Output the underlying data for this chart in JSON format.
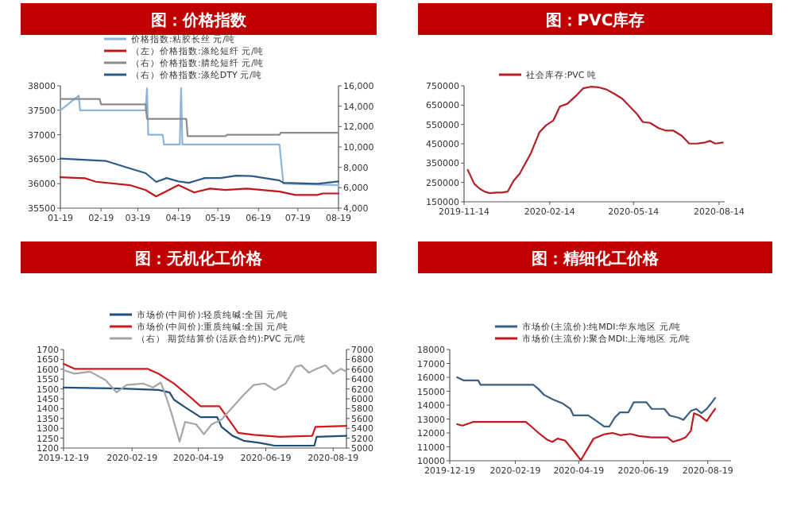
{
  "chart_data": [
    {
      "type": "line",
      "title": "图：价格指数",
      "legend": "top",
      "xlim": [
        "2019-01-19",
        "2019-08-19"
      ],
      "xticks": [
        {
          "value": "2019-01-19",
          "label": "01-19"
        },
        {
          "value": "2019-02-19",
          "label": "02-19"
        },
        {
          "value": "2019-03-19",
          "label": "03-19"
        },
        {
          "value": "2019-04-19",
          "label": "04-19"
        },
        {
          "value": "2019-05-19",
          "label": "05-19"
        },
        {
          "value": "2019-06-19",
          "label": "06-19"
        },
        {
          "value": "2019-07-19",
          "label": "07-19"
        },
        {
          "value": "2019-08-19",
          "label": "08-19"
        }
      ],
      "ylim": [
        35500,
        38000
      ],
      "yticks": [
        35500,
        36000,
        36500,
        37000,
        37500,
        38000
      ],
      "y2lim": [
        4000,
        16000
      ],
      "y2ticks": [
        {
          "value": 4000,
          "label": "4,000"
        },
        {
          "value": 6000,
          "label": "6,000"
        },
        {
          "value": 8000,
          "label": "8,000"
        },
        {
          "value": 10000,
          "label": "10,000"
        },
        {
          "value": 12000,
          "label": "12,000"
        },
        {
          "value": 14000,
          "label": "14,000"
        },
        {
          "value": 16000,
          "label": "16,000"
        }
      ],
      "series": [
        {
          "name": "价格指数:粘胶长丝 元/吨",
          "color": "#8fb4d9",
          "x": [
            "2019-01-19",
            "2019-02-02",
            "2019-02-03",
            "2019-03-25",
            "2019-03-26",
            "2019-03-27",
            "2019-04-07",
            "2019-04-08",
            "2019-04-20",
            "2019-04-21",
            "2019-04-22",
            "2019-07-05",
            "2019-07-08",
            "2019-08-19"
          ],
          "values": [
            37500,
            37800,
            37500,
            37500,
            37950,
            37000,
            37000,
            36800,
            36800,
            37950,
            36800,
            36800,
            36000,
            35970
          ]
        },
        {
          "name": "（左）价格指数:涤纶短纤 元/吨",
          "color": "#c0171d",
          "x": [
            "2019-01-19",
            "2019-02-07",
            "2019-02-15",
            "2019-03-13",
            "2019-03-25",
            "2019-04-02",
            "2019-04-19",
            "2019-05-01",
            "2019-05-13",
            "2019-05-25",
            "2019-06-10",
            "2019-07-05",
            "2019-07-17",
            "2019-08-03",
            "2019-08-07",
            "2019-08-19"
          ],
          "values": [
            36130,
            36110,
            36040,
            35970,
            35870,
            35740,
            35970,
            35820,
            35900,
            35870,
            35900,
            35840,
            35770,
            35770,
            35800,
            35800
          ]
        },
        {
          "name": "（右）价格指数:腈纶短纤 元/吨",
          "color": "#8c8c8c",
          "axis": "y2",
          "x": [
            "2019-01-19",
            "2019-02-18",
            "2019-02-19",
            "2019-03-25",
            "2019-03-26",
            "2019-04-25",
            "2019-04-26",
            "2019-05-25",
            "2019-05-26",
            "2019-07-05",
            "2019-07-06",
            "2019-08-19"
          ],
          "values": [
            14700,
            14700,
            14180,
            14180,
            12760,
            12760,
            11060,
            11060,
            11200,
            11200,
            11400,
            11400
          ]
        },
        {
          "name": "（右）价格指数:涤纶DTY 元/吨",
          "color": "#2e5a88",
          "axis": "y2",
          "x": [
            "2019-01-19",
            "2019-02-23",
            "2019-03-13",
            "2019-03-25",
            "2019-04-02",
            "2019-04-10",
            "2019-04-19",
            "2019-04-27",
            "2019-05-09",
            "2019-05-21",
            "2019-06-02",
            "2019-06-14",
            "2019-07-05",
            "2019-07-08",
            "2019-08-03",
            "2019-08-19"
          ],
          "values": [
            8860,
            8620,
            7900,
            7430,
            6570,
            6950,
            6620,
            6480,
            6950,
            6950,
            7190,
            7150,
            6720,
            6480,
            6380,
            6620
          ]
        }
      ]
    },
    {
      "type": "line",
      "title": "图：PVC库存",
      "legend": "top",
      "xlim": [
        "2019-11-14",
        "2020-08-20"
      ],
      "xticks": [
        {
          "value": "2019-11-14",
          "label": "2019-11-14"
        },
        {
          "value": "2020-02-14",
          "label": "2020-02-14"
        },
        {
          "value": "2020-05-14",
          "label": "2020-05-14"
        },
        {
          "value": "2020-08-14",
          "label": "2020-08-14"
        }
      ],
      "ylim": [
        150000,
        750000
      ],
      "yticks": [
        150000,
        250000,
        350000,
        450000,
        550000,
        650000,
        750000
      ],
      "series": [
        {
          "name": "社会库存:PVC 吨",
          "color": "#b22028",
          "x": [
            "2019-11-18",
            "2019-11-25",
            "2019-12-01",
            "2019-12-06",
            "2019-12-11",
            "2019-12-20",
            "2019-12-25",
            "2019-12-31",
            "2020-01-06",
            "2020-01-13",
            "2020-01-25",
            "2020-02-03",
            "2020-02-10",
            "2020-02-18",
            "2020-02-25",
            "2020-03-04",
            "2020-03-13",
            "2020-03-21",
            "2020-03-29",
            "2020-04-07",
            "2020-04-15",
            "2020-04-23",
            "2020-05-02",
            "2020-05-10",
            "2020-05-18",
            "2020-05-24",
            "2020-06-01",
            "2020-06-10",
            "2020-06-18",
            "2020-06-26",
            "2020-07-05",
            "2020-07-13",
            "2020-07-21",
            "2020-07-30",
            "2020-08-04",
            "2020-08-10",
            "2020-08-18"
          ],
          "values": [
            315000,
            243000,
            217000,
            203000,
            195000,
            198000,
            198000,
            203000,
            257000,
            297000,
            403000,
            510000,
            545000,
            571000,
            643000,
            657000,
            697000,
            737000,
            745000,
            742000,
            731000,
            710000,
            683000,
            643000,
            603000,
            563000,
            558000,
            531000,
            518000,
            518000,
            491000,
            451000,
            451000,
            457000,
            465000,
            451000,
            457000
          ]
        }
      ]
    },
    {
      "type": "line",
      "title": "图：无机化工价格",
      "legend": "top",
      "xlim": [
        "2019-12-19",
        "2020-08-31"
      ],
      "xticks": [
        {
          "value": "2019-12-19",
          "label": "2019-12-19"
        },
        {
          "value": "2020-02-19",
          "label": "2020-02-19"
        },
        {
          "value": "2020-04-19",
          "label": "2020-04-19"
        },
        {
          "value": "2020-06-19",
          "label": "2020-06-19"
        },
        {
          "value": "2020-08-19",
          "label": "2020-08-19"
        }
      ],
      "ylim": [
        1200,
        1700
      ],
      "yticks": [
        1200,
        1250,
        1300,
        1350,
        1400,
        1450,
        1500,
        1550,
        1600,
        1650,
        1700
      ],
      "y2lim": [
        5000,
        7000
      ],
      "y2ticks": [
        5000,
        5200,
        5400,
        5600,
        5800,
        6000,
        6200,
        6400,
        6600,
        6800,
        7000
      ],
      "series": [
        {
          "name": "市场价(中间价):轻质纯碱:全国 元/吨",
          "color": "#1f4e79",
          "x": [
            "2019-12-19",
            "2020-02-10",
            "2020-03-14",
            "2020-03-24",
            "2020-03-28",
            "2020-04-07",
            "2020-04-21",
            "2020-05-06",
            "2020-05-10",
            "2020-05-20",
            "2020-05-30",
            "2020-06-13",
            "2020-06-27",
            "2020-08-02",
            "2020-08-04",
            "2020-08-31"
          ],
          "values": [
            1507,
            1502,
            1495,
            1482,
            1445,
            1407,
            1357,
            1357,
            1307,
            1262,
            1237,
            1227,
            1212,
            1212,
            1257,
            1262
          ]
        },
        {
          "name": "市场价(中间价):重质纯碱:全国 元/吨",
          "color": "#d0191f",
          "x": [
            "2019-12-19",
            "2019-12-29",
            "2020-03-04",
            "2020-03-14",
            "2020-03-28",
            "2020-04-12",
            "2020-04-21",
            "2020-05-08",
            "2020-05-15",
            "2020-05-25",
            "2020-06-08",
            "2020-07-02",
            "2020-07-31",
            "2020-08-03",
            "2020-08-31"
          ],
          "values": [
            1627,
            1602,
            1602,
            1577,
            1527,
            1457,
            1412,
            1412,
            1357,
            1277,
            1267,
            1257,
            1262,
            1307,
            1312
          ]
        },
        {
          "name": "（右） 期货结算价(活跃合约):PVC 元/吨",
          "color": "#a6a6a6",
          "axis": "y2",
          "x": [
            "2019-12-19",
            "2019-12-29",
            "2020-01-12",
            "2020-01-26",
            "2020-02-05",
            "2020-02-14",
            "2020-02-29",
            "2020-03-09",
            "2020-03-16",
            "2020-03-21",
            "2020-03-26",
            "2020-04-02",
            "2020-04-07",
            "2020-04-17",
            "2020-04-24",
            "2020-05-01",
            "2020-05-10",
            "2020-05-20",
            "2020-05-30",
            "2020-06-08",
            "2020-06-18",
            "2020-06-27",
            "2020-07-07",
            "2020-07-16",
            "2020-07-21",
            "2020-07-28",
            "2020-08-04",
            "2020-08-12",
            "2020-08-19",
            "2020-08-26",
            "2020-08-31"
          ],
          "values": [
            6580,
            6510,
            6550,
            6380,
            6130,
            6280,
            6310,
            6230,
            6330,
            6030,
            5680,
            5130,
            5530,
            5480,
            5280,
            5480,
            5580,
            5830,
            6080,
            6280,
            6310,
            6180,
            6310,
            6650,
            6680,
            6530,
            6610,
            6680,
            6510,
            6610,
            6550
          ]
        }
      ]
    },
    {
      "type": "line",
      "title": "图：精细化工价格",
      "legend": "top",
      "xlim": [
        "2019-12-19",
        "2020-09-10"
      ],
      "xticks": [
        {
          "value": "2019-12-19",
          "label": "2019-12-19"
        },
        {
          "value": "2020-02-19",
          "label": "2020-02-19"
        },
        {
          "value": "2020-04-19",
          "label": "2020-04-19"
        },
        {
          "value": "2020-06-19",
          "label": "2020-06-19"
        },
        {
          "value": "2020-08-19",
          "label": "2020-08-19"
        }
      ],
      "ylim": [
        10000,
        18000
      ],
      "yticks": [
        10000,
        11000,
        12000,
        13000,
        14000,
        15000,
        16000,
        17000,
        18000
      ],
      "series": [
        {
          "name": "市场价(主流价):纯MDI:华东地区 元/吨",
          "color": "#3a5f85",
          "x": [
            "2019-12-26",
            "2020-01-01",
            "2020-01-15",
            "2020-01-17",
            "2020-03-07",
            "2020-03-12",
            "2020-03-17",
            "2020-03-25",
            "2020-04-04",
            "2020-04-11",
            "2020-04-14",
            "2020-04-28",
            "2020-05-06",
            "2020-05-13",
            "2020-05-18",
            "2020-05-23",
            "2020-05-28",
            "2020-06-05",
            "2020-06-10",
            "2020-06-22",
            "2020-06-27",
            "2020-07-09",
            "2020-07-14",
            "2020-07-22",
            "2020-07-27",
            "2020-08-03",
            "2020-08-08",
            "2020-08-13",
            "2020-08-18",
            "2020-08-23",
            "2020-08-26"
          ],
          "values": [
            16000,
            15780,
            15780,
            15470,
            15470,
            15150,
            14750,
            14430,
            14110,
            13730,
            13260,
            13260,
            12850,
            12470,
            12470,
            13100,
            13480,
            13480,
            14210,
            14210,
            13730,
            13730,
            13260,
            13100,
            12940,
            13580,
            13730,
            13420,
            13730,
            14210,
            14520
          ]
        },
        {
          "name": "市场价(主流价):聚合MDI:上海地区 元/吨",
          "color": "#c0191f",
          "x": [
            "2019-12-26",
            "2019-12-31",
            "2020-01-10",
            "2020-02-29",
            "2020-03-05",
            "2020-03-12",
            "2020-03-20",
            "2020-03-25",
            "2020-03-30",
            "2020-04-06",
            "2020-04-14",
            "2020-04-21",
            "2020-05-03",
            "2020-05-13",
            "2020-05-21",
            "2020-05-28",
            "2020-06-07",
            "2020-06-15",
            "2020-06-27",
            "2020-07-12",
            "2020-07-17",
            "2020-07-24",
            "2020-07-29",
            "2020-08-03",
            "2020-08-06",
            "2020-08-11",
            "2020-08-18",
            "2020-08-23",
            "2020-08-26"
          ],
          "values": [
            12630,
            12530,
            12790,
            12790,
            12470,
            12000,
            11520,
            11360,
            11590,
            11460,
            10730,
            10040,
            11590,
            11900,
            12000,
            11840,
            11930,
            11780,
            11680,
            11680,
            11360,
            11520,
            11680,
            12150,
            13420,
            13260,
            12850,
            13420,
            13730
          ]
        }
      ]
    }
  ]
}
